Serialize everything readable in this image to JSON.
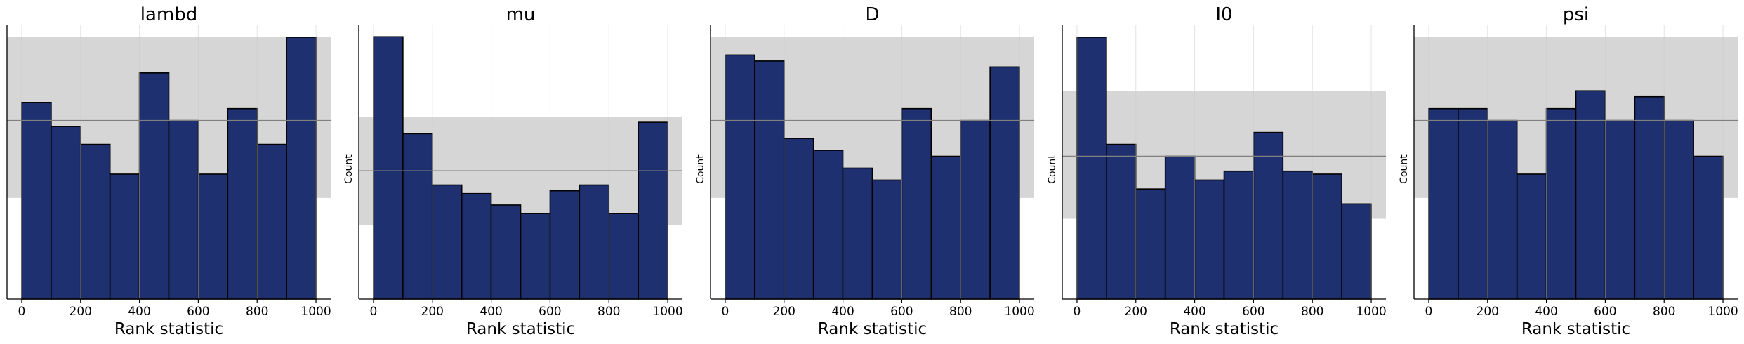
{
  "figure": {
    "panels": [
      "lambd",
      "mu",
      "D",
      "I0",
      "psi"
    ]
  },
  "style": {
    "bar_fill": "#1f3070",
    "bar_edge": "#000000",
    "band_fill": "#d6d6d6",
    "mean_line": "#808080",
    "grid": "#cccccc",
    "axis": "#000000"
  },
  "chart_data": [
    {
      "type": "bar",
      "title": "lambd",
      "xlabel": "Rank statistic",
      "ylabel": "",
      "bin_edges": [
        0,
        100,
        200,
        300,
        400,
        500,
        600,
        700,
        800,
        900,
        1000
      ],
      "counts": [
        33,
        29,
        26,
        21,
        38,
        30,
        21,
        32,
        26,
        44
      ],
      "expected": 30,
      "band": [
        17,
        44
      ],
      "ylim": [
        0,
        46
      ],
      "xlim": [
        -50,
        1050
      ],
      "xticks": [
        0,
        200,
        400,
        600,
        800,
        1000
      ],
      "grid_x": true
    },
    {
      "type": "bar",
      "title": "mu",
      "xlabel": "Rank statistic",
      "ylabel": "Count",
      "bin_edges": [
        0,
        100,
        200,
        300,
        400,
        500,
        600,
        700,
        800,
        900,
        1000
      ],
      "counts": [
        46,
        29,
        20,
        18.5,
        16.5,
        15,
        19,
        20,
        15,
        31
      ],
      "expected": 22.5,
      "band": [
        13,
        32
      ],
      "ylim": [
        0,
        48
      ],
      "xlim": [
        -50,
        1050
      ],
      "xticks": [
        0,
        200,
        400,
        600,
        800,
        1000
      ],
      "grid_x": true
    },
    {
      "type": "bar",
      "title": "D",
      "xlabel": "Rank statistic",
      "ylabel": "Count",
      "bin_edges": [
        0,
        100,
        200,
        300,
        400,
        500,
        600,
        700,
        800,
        900,
        1000
      ],
      "counts": [
        41,
        40,
        27,
        25,
        22,
        20,
        32,
        24,
        30,
        39
      ],
      "expected": 30,
      "band": [
        17,
        44
      ],
      "ylim": [
        0,
        46
      ],
      "xlim": [
        -50,
        1050
      ],
      "xticks": [
        0,
        200,
        400,
        600,
        800,
        1000
      ],
      "grid_x": true
    },
    {
      "type": "bar",
      "title": "I0",
      "xlabel": "Rank statistic",
      "ylabel": "Count",
      "bin_edges": [
        0,
        100,
        200,
        300,
        400,
        500,
        600,
        700,
        800,
        900,
        1000
      ],
      "counts": [
        44,
        26,
        18.5,
        24,
        20,
        21.5,
        28,
        21.5,
        21,
        16
      ],
      "expected": 24,
      "band": [
        13.5,
        35
      ],
      "ylim": [
        0,
        46
      ],
      "xlim": [
        -50,
        1050
      ],
      "xticks": [
        0,
        200,
        400,
        600,
        800,
        1000
      ],
      "grid_x": true
    },
    {
      "type": "bar",
      "title": "psi",
      "xlabel": "Rank statistic",
      "ylabel": "Count",
      "bin_edges": [
        0,
        100,
        200,
        300,
        400,
        500,
        600,
        700,
        800,
        900,
        1000
      ],
      "counts": [
        32,
        32,
        30,
        21,
        32,
        35,
        30,
        34,
        30,
        24
      ],
      "expected": 30,
      "band": [
        17,
        44
      ],
      "ylim": [
        0,
        46
      ],
      "xlim": [
        -50,
        1050
      ],
      "xticks": [
        0,
        200,
        400,
        600,
        800,
        1000
      ],
      "grid_x": true
    }
  ]
}
